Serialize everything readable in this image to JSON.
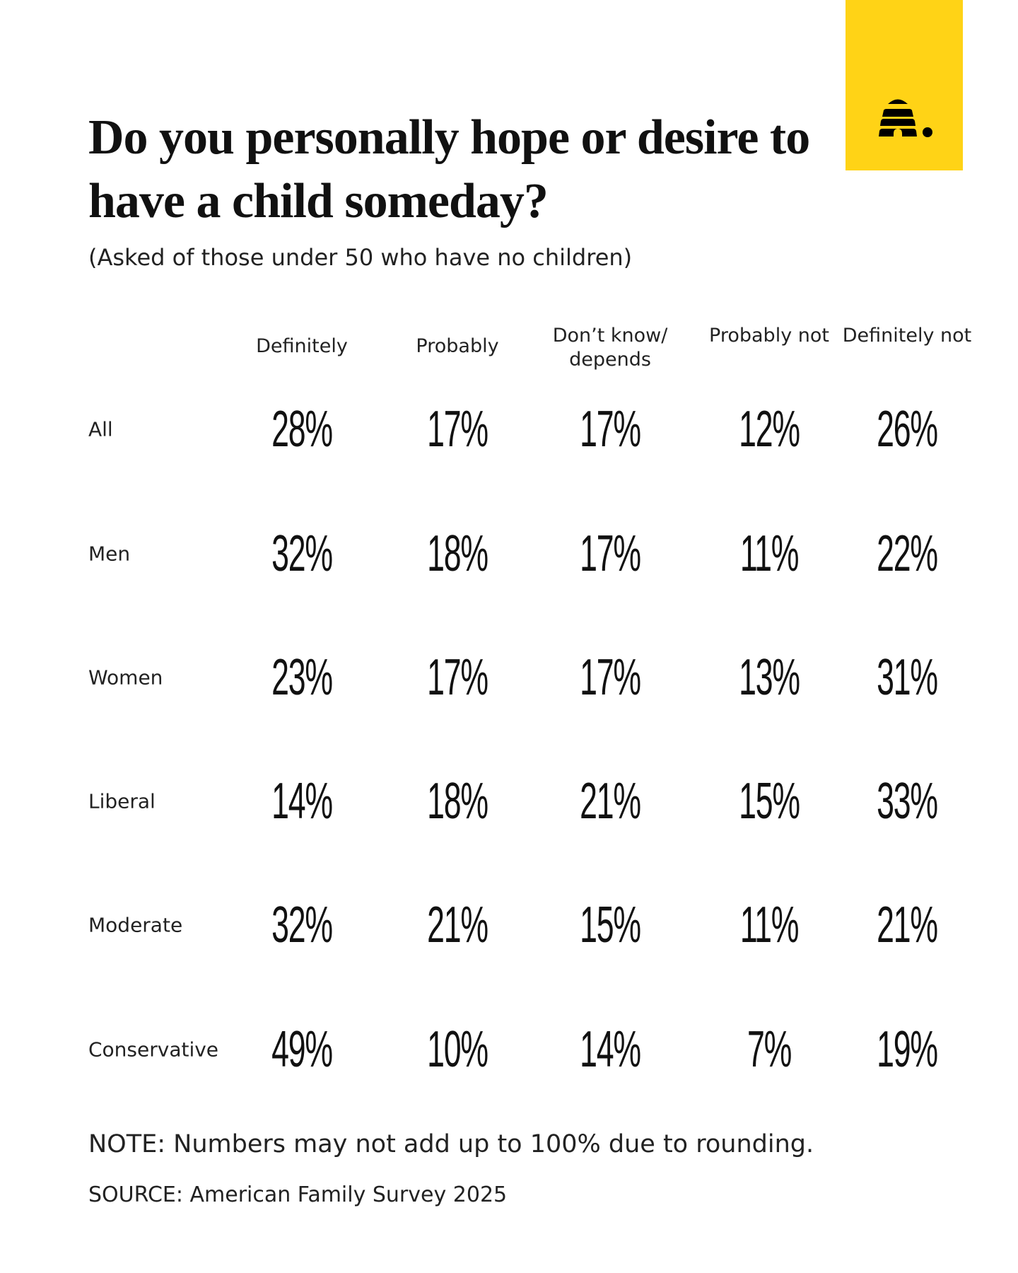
{
  "brand": {
    "color": "#FFD316",
    "logo": "beehive-icon"
  },
  "title": "Do you personally hope or desire to have a child someday?",
  "subtitle": "(Asked of those under 50 who have no children)",
  "note": "NOTE: Numbers may not add up to 100% due to rounding.",
  "source": "SOURCE: American Family Survey 2025",
  "chart_data": {
    "type": "table",
    "title": "Do you personally hope or desire to have a child someday?",
    "columns": [
      "Definitely",
      "Probably",
      "Don’t know/ depends",
      "Probably not",
      "Definitely not"
    ],
    "rows": [
      {
        "label": "All",
        "values": [
          "28%",
          "17%",
          "17%",
          "12%",
          "26%"
        ]
      },
      {
        "label": "Men",
        "values": [
          "32%",
          "18%",
          "17%",
          "11%",
          "22%"
        ]
      },
      {
        "label": "Women",
        "values": [
          "23%",
          "17%",
          "17%",
          "13%",
          "31%"
        ]
      },
      {
        "label": "Liberal",
        "values": [
          "14%",
          "18%",
          "21%",
          "15%",
          "33%"
        ]
      },
      {
        "label": "Moderate",
        "values": [
          "32%",
          "21%",
          "15%",
          "11%",
          "21%"
        ]
      },
      {
        "label": "Conservative",
        "values": [
          "49%",
          "10%",
          "14%",
          "7%",
          "19%"
        ]
      }
    ]
  }
}
